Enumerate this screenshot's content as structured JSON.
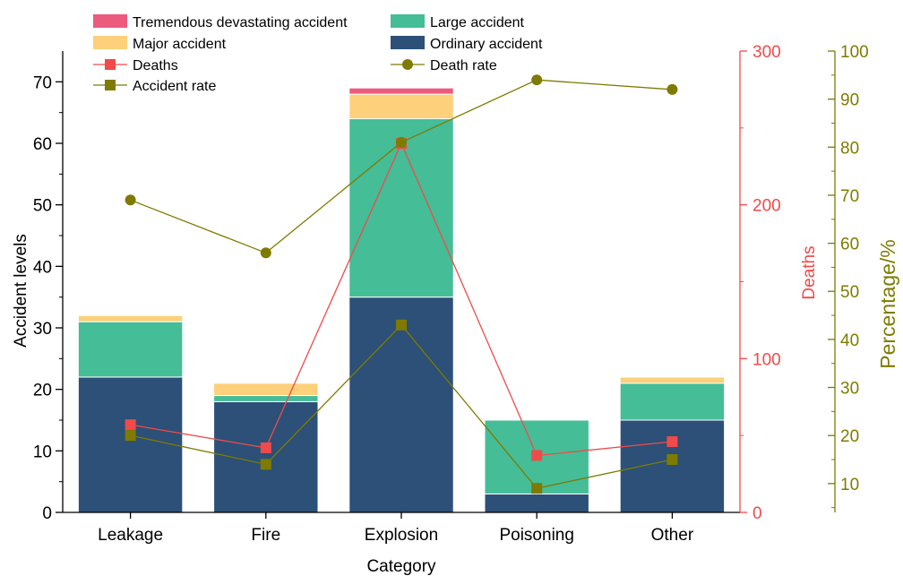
{
  "chart_data": {
    "type": "bar",
    "categories": [
      "Leakage",
      "Fire",
      "Explosion",
      "Poisoning",
      "Other"
    ],
    "xlabel": "Category",
    "stacked_series": [
      {
        "name": "Ordinary accident",
        "color": "#2c5077",
        "values": [
          22,
          18,
          35,
          3,
          15
        ]
      },
      {
        "name": "Large accident",
        "color": "#45bd97",
        "values": [
          9,
          1,
          29,
          12,
          6
        ]
      },
      {
        "name": "Major accident",
        "color": "#fdd07b",
        "values": [
          1,
          2,
          4,
          0,
          1
        ]
      },
      {
        "name": "Tremendous devastating accident",
        "color": "#ec5a7e",
        "values": [
          0,
          0,
          1,
          0,
          0
        ]
      }
    ],
    "line_series": [
      {
        "name": "Deaths",
        "axis": "deaths",
        "color": "#f04a4a",
        "marker": "square",
        "values": [
          57,
          42,
          240,
          37,
          46
        ]
      },
      {
        "name": "Death rate",
        "axis": "percentage",
        "color": "#7e7b00",
        "marker": "circle",
        "values": [
          69,
          58,
          81,
          94,
          92
        ]
      },
      {
        "name": "Accident rate",
        "axis": "percentage",
        "color": "#7e7b00",
        "marker": "square",
        "values": [
          20,
          14,
          43,
          9,
          15
        ]
      }
    ],
    "axes": {
      "left": {
        "label": "Accident levels",
        "min": 0,
        "max": 75,
        "ticks": [
          0,
          10,
          20,
          30,
          40,
          50,
          60,
          70
        ],
        "color": "#000000"
      },
      "deaths": {
        "label": "Deaths",
        "min": 0,
        "max": 300,
        "ticks": [
          0,
          100,
          200,
          300
        ],
        "color": "#f04a4a"
      },
      "percentage": {
        "label": "Percentage/%",
        "min": 4,
        "max": 100,
        "ticks": [
          10,
          20,
          30,
          40,
          50,
          60,
          70,
          80,
          90,
          100
        ],
        "color": "#7e7b00"
      }
    },
    "legend": {
      "placement": "top-left",
      "items": [
        {
          "label": "Tremendous devastating accident",
          "kind": "bar",
          "color": "#ec5a7e"
        },
        {
          "label": "Large accident",
          "kind": "bar",
          "color": "#45bd97"
        },
        {
          "label": "Major accident",
          "kind": "bar",
          "color": "#fdd07b"
        },
        {
          "label": "Ordinary accident",
          "kind": "bar",
          "color": "#2c5077"
        },
        {
          "label": "Deaths",
          "kind": "line",
          "marker": "square",
          "color": "#f04a4a"
        },
        {
          "label": "Death rate",
          "kind": "line",
          "marker": "circle",
          "color": "#7e7b00"
        },
        {
          "label": "Accident rate",
          "kind": "line",
          "marker": "square",
          "color": "#7e7b00"
        }
      ]
    },
    "grid": false
  }
}
